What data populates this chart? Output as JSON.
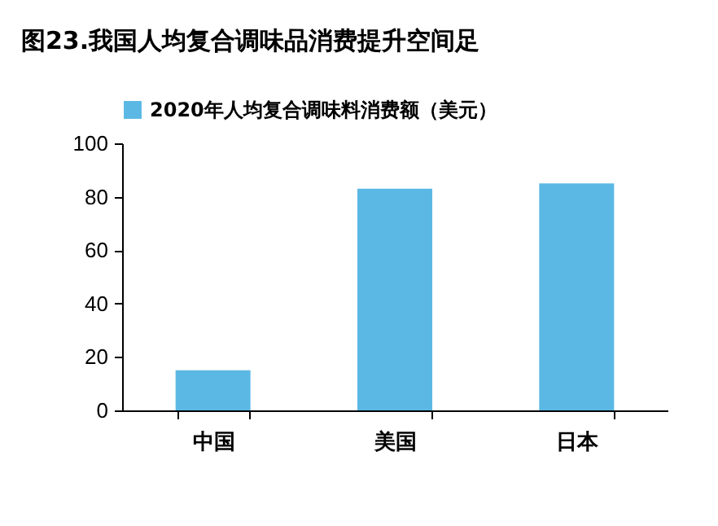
{
  "chart_data": {
    "type": "bar",
    "title": "图23.我国人均复合调味品消费提升空间足",
    "categories": [
      "中国",
      "美国",
      "日本"
    ],
    "series": [
      {
        "name": "2020年人均复合调味料消费额（美元）",
        "color": "#5bb8e4",
        "values": [
          15,
          83,
          85
        ]
      }
    ],
    "ylim": [
      0,
      100
    ],
    "yticks": [
      0,
      20,
      40,
      60,
      80,
      100
    ],
    "grid": false,
    "legend": "top"
  }
}
